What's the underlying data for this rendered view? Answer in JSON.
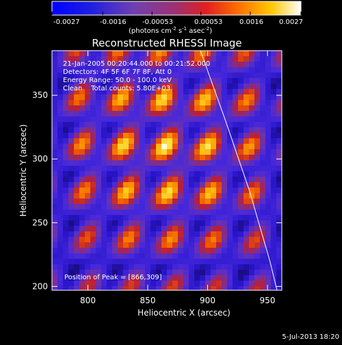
{
  "colorbar": {
    "tick_labels": [
      "-0.0027",
      "-0.0016",
      "-0.00053",
      "0.00053",
      "0.0016",
      "0.0027"
    ],
    "unit_label_prefix": "(photons cm",
    "unit_exp1": "-2",
    "unit_mid": " s",
    "unit_exp2": "-1",
    "unit_mid2": " asec",
    "unit_exp3": "-2",
    "unit_suffix": ")",
    "range": [
      -0.0027,
      0.0027
    ],
    "colormap": [
      "#000000",
      "#1a0af0",
      "#5a2bd0",
      "#9040a0",
      "#d03030",
      "#ff8000",
      "#ffd000",
      "#ffffff"
    ]
  },
  "chart_data": {
    "type": "heatmap",
    "title": "Reconstructed RHESSI Image",
    "xlabel": "Heliocentric X (arcsec)",
    "ylabel": "Heliocentric Y (arcsec)",
    "xlim": [
      770,
      962
    ],
    "ylim": [
      197,
      385
    ],
    "x_ticks": [
      800,
      850,
      900,
      950
    ],
    "y_ticks": [
      200,
      250,
      300,
      350
    ],
    "annotations": [
      "21-Jan-2005 00:20:44.000 to 00:21:52.000",
      "Detectors: 4F 5F 6F 7F 8F, Att 0",
      "Energy Range: 50.0 - 100.0 keV",
      "Clean    Total counts: 5.80E+03"
    ],
    "peak_label": "Position of Peak = [866,309]",
    "peak": [
      866,
      309
    ],
    "limb_curve": [
      [
        894,
        385
      ],
      [
        915,
        330
      ],
      [
        935,
        275
      ],
      [
        952,
        220
      ],
      [
        958,
        197
      ]
    ]
  },
  "footer": {
    "date": "5-Jul-2013 18:20"
  }
}
